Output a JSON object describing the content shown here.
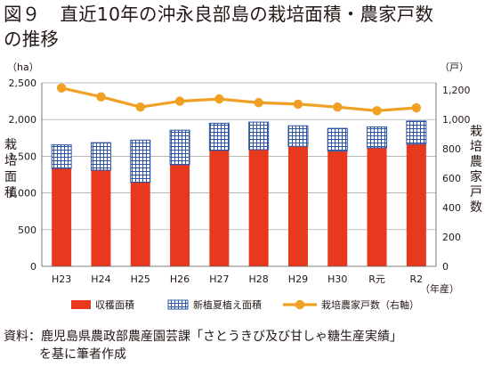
{
  "title": {
    "figure_no": "図９",
    "line1": "直近10年の沖永良部島の栽培面積・農家戸数",
    "line2": "の推移"
  },
  "chart_data": {
    "type": "bar",
    "subtype": "stacked bar with line on secondary axis",
    "categories": [
      "H23",
      "H24",
      "H25",
      "H26",
      "H27",
      "H28",
      "H29",
      "H30",
      "R元",
      "R2"
    ],
    "x_unit": "（年産）",
    "series": [
      {
        "name": "収穫面積",
        "kind": "bar",
        "axis": "left",
        "color": "#e8381e",
        "values": [
          1335,
          1310,
          1145,
          1385,
          1580,
          1590,
          1635,
          1570,
          1615,
          1665
        ]
      },
      {
        "name": "新植夏植え面積",
        "kind": "bar",
        "axis": "left",
        "pattern": "grid",
        "color": "#2d55a6",
        "values": [
          320,
          375,
          575,
          470,
          370,
          375,
          280,
          310,
          285,
          315
        ]
      },
      {
        "name": "栽培農家戸数（右軸）",
        "kind": "line",
        "axis": "right",
        "color": "#f0a023",
        "values": [
          1215,
          1155,
          1085,
          1125,
          1140,
          1115,
          1105,
          1085,
          1060,
          1080
        ]
      }
    ],
    "y_left": {
      "unit": "（ha）",
      "label": "栽培面積",
      "ticks": [
        "2,500",
        "2,000",
        "1,500",
        "1,000",
        "500",
        "0"
      ],
      "ylim": [
        0,
        2500
      ]
    },
    "y_right": {
      "unit": "（戸）",
      "label": "栽培農家戸数",
      "ticks": [
        "1,200",
        "1,000",
        "800",
        "600",
        "400",
        "200",
        "0"
      ],
      "ylim": [
        0,
        1250
      ]
    },
    "grid": "horizontal",
    "legend_position": "bottom"
  },
  "source": {
    "line1": "資料：鹿児島県農政部農産園芸課「さとうきび及び甘しゃ糖生産実績」",
    "line2": "を基に筆者作成"
  }
}
